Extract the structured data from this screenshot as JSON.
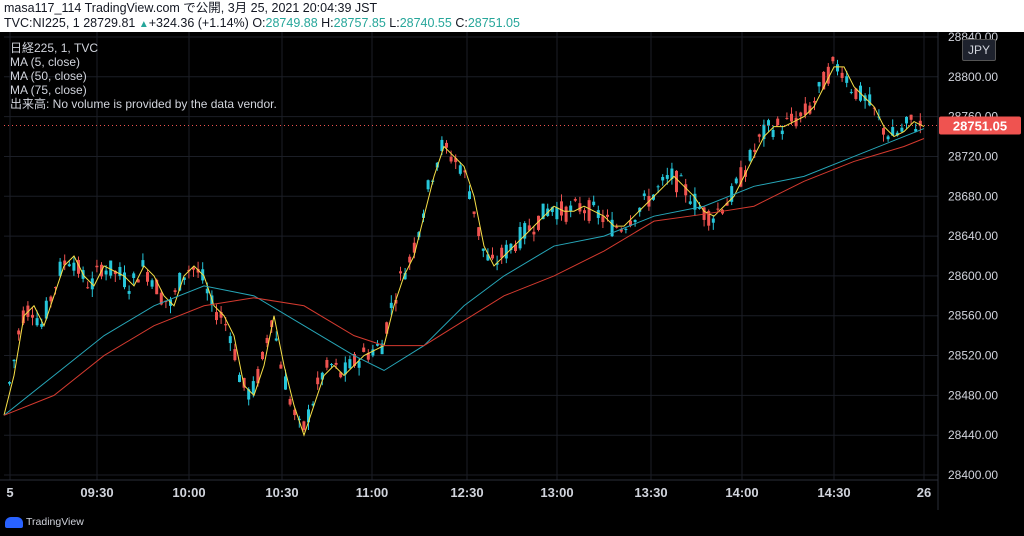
{
  "header": {
    "line1": "masa117_114 TradingView.com で公開, 3月 25, 2021 20:04:39 JST",
    "symbol": "TVC:NI225, 1",
    "price": "28729.81",
    "change": "+324.36 (+1.14%)",
    "o_label": "O:",
    "o_value": "28749.88",
    "h_label": "H:",
    "h_value": "28757.85",
    "l_label": "L:",
    "l_value": "28740.55",
    "c_label": "C:",
    "c_value": "28751.05"
  },
  "legend": {
    "title": "日経225, 1, TVC",
    "ma5": "MA (5, close)",
    "ma50": "MA (50, close)",
    "ma75": "MA (75, close)",
    "volume": "出来高: No volume is provided by the data vendor."
  },
  "currency_button": "JPY",
  "brand": "TradingView",
  "colors": {
    "up": "#26c6da",
    "down": "#ef5350",
    "ma5": "#f7e047",
    "ma50": "#26a6b8",
    "ma75": "#d43a2f",
    "last_price_bg": "#ef5350",
    "grid": "#1b1e26"
  },
  "chart_data": {
    "type": "candlestick",
    "x_ticks": [
      "5",
      "09:30",
      "10:00",
      "10:30",
      "11:00",
      "12:30",
      "13:00",
      "13:30",
      "14:00",
      "14:30",
      "26"
    ],
    "y_ticks": [
      28400,
      28440,
      28480,
      28520,
      28560,
      28600,
      28640,
      28680,
      28720,
      28760,
      28800,
      28840
    ],
    "ylim": [
      28395,
      28845
    ],
    "last_price": "28751.05",
    "series": [
      {
        "name": "MA (5, close)",
        "values": [
          [
            0,
            28460
          ],
          [
            10,
            28500
          ],
          [
            20,
            28560
          ],
          [
            30,
            28570
          ],
          [
            40,
            28550
          ],
          [
            50,
            28580
          ],
          [
            60,
            28610
          ],
          [
            70,
            28620
          ],
          [
            80,
            28600
          ],
          [
            90,
            28590
          ],
          [
            100,
            28610
          ],
          [
            110,
            28605
          ],
          [
            120,
            28600
          ],
          [
            130,
            28590
          ],
          [
            140,
            28610
          ],
          [
            150,
            28600
          ],
          [
            160,
            28580
          ],
          [
            170,
            28570
          ],
          [
            180,
            28600
          ],
          [
            190,
            28610
          ],
          [
            200,
            28600
          ],
          [
            210,
            28570
          ],
          [
            220,
            28560
          ],
          [
            230,
            28540
          ],
          [
            240,
            28490
          ],
          [
            250,
            28480
          ],
          [
            260,
            28510
          ],
          [
            270,
            28560
          ],
          [
            280,
            28510
          ],
          [
            290,
            28470
          ],
          [
            300,
            28440
          ],
          [
            310,
            28470
          ],
          [
            320,
            28500
          ],
          [
            330,
            28510
          ],
          [
            340,
            28500
          ],
          [
            350,
            28510
          ],
          [
            360,
            28520
          ],
          [
            370,
            28525
          ],
          [
            380,
            28530
          ],
          [
            390,
            28570
          ],
          [
            400,
            28600
          ],
          [
            410,
            28620
          ],
          [
            420,
            28660
          ],
          [
            430,
            28700
          ],
          [
            440,
            28730
          ],
          [
            450,
            28720
          ],
          [
            460,
            28710
          ],
          [
            470,
            28680
          ],
          [
            480,
            28630
          ],
          [
            490,
            28610
          ],
          [
            500,
            28620
          ],
          [
            510,
            28630
          ],
          [
            520,
            28640
          ],
          [
            530,
            28650
          ],
          [
            540,
            28660
          ],
          [
            550,
            28670
          ],
          [
            560,
            28665
          ],
          [
            570,
            28665
          ],
          [
            580,
            28670
          ],
          [
            590,
            28665
          ],
          [
            600,
            28660
          ],
          [
            610,
            28650
          ],
          [
            620,
            28650
          ],
          [
            630,
            28660
          ],
          [
            640,
            28670
          ],
          [
            650,
            28680
          ],
          [
            660,
            28690
          ],
          [
            670,
            28700
          ],
          [
            680,
            28690
          ],
          [
            690,
            28680
          ],
          [
            700,
            28665
          ],
          [
            710,
            28660
          ],
          [
            720,
            28670
          ],
          [
            730,
            28680
          ],
          [
            740,
            28700
          ],
          [
            750,
            28720
          ],
          [
            760,
            28740
          ],
          [
            770,
            28750
          ],
          [
            780,
            28750
          ],
          [
            790,
            28755
          ],
          [
            800,
            28760
          ],
          [
            810,
            28770
          ],
          [
            820,
            28790
          ],
          [
            830,
            28810
          ],
          [
            840,
            28810
          ],
          [
            850,
            28790
          ],
          [
            860,
            28780
          ],
          [
            870,
            28770
          ],
          [
            880,
            28750
          ],
          [
            890,
            28740
          ],
          [
            900,
            28745
          ],
          [
            910,
            28755
          ],
          [
            920,
            28750
          ]
        ]
      },
      {
        "name": "MA (50, close)",
        "values": [
          [
            0,
            28460
          ],
          [
            50,
            28500
          ],
          [
            100,
            28540
          ],
          [
            150,
            28570
          ],
          [
            200,
            28590
          ],
          [
            250,
            28580
          ],
          [
            300,
            28550
          ],
          [
            350,
            28520
          ],
          [
            380,
            28505
          ],
          [
            420,
            28530
          ],
          [
            460,
            28570
          ],
          [
            500,
            28600
          ],
          [
            550,
            28630
          ],
          [
            600,
            28640
          ],
          [
            650,
            28660
          ],
          [
            700,
            28670
          ],
          [
            750,
            28690
          ],
          [
            800,
            28700
          ],
          [
            850,
            28720
          ],
          [
            900,
            28740
          ],
          [
            920,
            28748
          ]
        ]
      },
      {
        "name": "MA (75, close)",
        "values": [
          [
            0,
            28460
          ],
          [
            50,
            28480
          ],
          [
            100,
            28520
          ],
          [
            150,
            28550
          ],
          [
            200,
            28570
          ],
          [
            250,
            28578
          ],
          [
            300,
            28570
          ],
          [
            350,
            28540
          ],
          [
            380,
            28530
          ],
          [
            420,
            28530
          ],
          [
            460,
            28555
          ],
          [
            500,
            28580
          ],
          [
            550,
            28600
          ],
          [
            600,
            28625
          ],
          [
            650,
            28655
          ],
          [
            700,
            28662
          ],
          [
            750,
            28670
          ],
          [
            800,
            28695
          ],
          [
            850,
            28715
          ],
          [
            900,
            28730
          ],
          [
            920,
            28738
          ]
        ]
      }
    ]
  }
}
